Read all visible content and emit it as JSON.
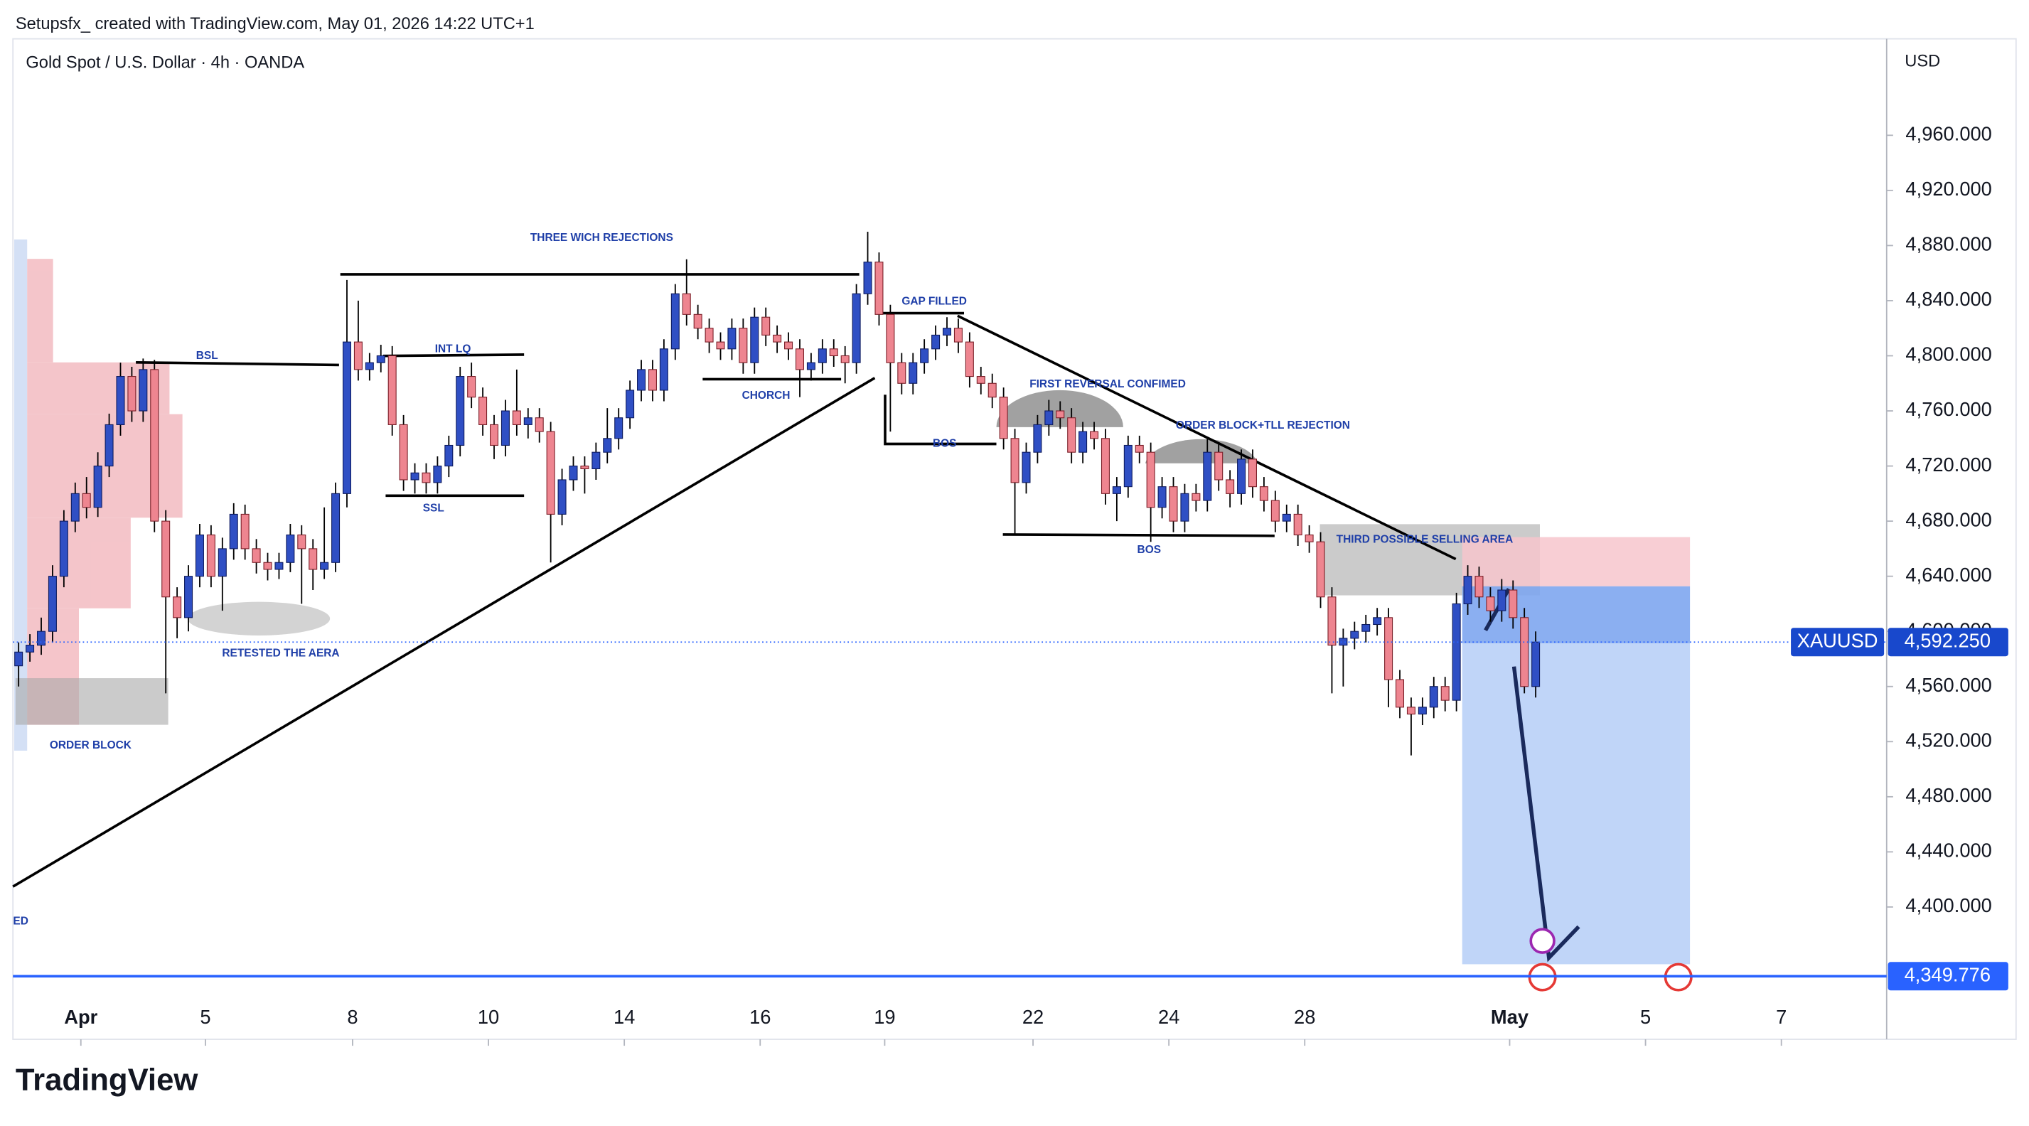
{
  "header": {
    "credit": "Setupsfx_ created with TradingView.com, May 01, 2026 14:22 UTC+1",
    "symbol": "Gold Spot / U.S. Dollar · 4h · OANDA",
    "currency": "USD",
    "logo": "TradingView"
  },
  "chart_data": {
    "type": "candlestick",
    "up_color": "#2f4fc4",
    "down_color": "#ee8590",
    "xlim": [
      -0.5,
      165
    ],
    "xticks": [
      {
        "value": 5.5,
        "label": "Apr"
      },
      {
        "value": 16.5,
        "label": "5"
      },
      {
        "value": 29.5,
        "label": "8"
      },
      {
        "value": 41.5,
        "label": "10"
      },
      {
        "value": 53.5,
        "label": "14"
      },
      {
        "value": 65.5,
        "label": "16"
      },
      {
        "value": 76.5,
        "label": "19"
      },
      {
        "value": 89.6,
        "label": "22"
      },
      {
        "value": 101.6,
        "label": "24"
      },
      {
        "value": 113.6,
        "label": "28"
      },
      {
        "value": 131.7,
        "label": "May"
      },
      {
        "value": 143.7,
        "label": "5"
      },
      {
        "value": 155.7,
        "label": "7"
      }
    ],
    "ylim": [
      4304,
      5030
    ],
    "yticks": [
      {
        "value": 4400,
        "label": "4,400.000"
      },
      {
        "value": 4440,
        "label": "4,440.000"
      },
      {
        "value": 4480,
        "label": "4,480.000"
      },
      {
        "value": 4520,
        "label": "4,520.000"
      },
      {
        "value": 4560,
        "label": "4,560.000"
      },
      {
        "value": 4600,
        "label": "4,600.000"
      },
      {
        "value": 4640,
        "label": "4,640.000"
      },
      {
        "value": 4680,
        "label": "4,680.000"
      },
      {
        "value": 4720,
        "label": "4,720.000"
      },
      {
        "value": 4760,
        "label": "4,760.000"
      },
      {
        "value": 4800,
        "label": "4,800.000"
      },
      {
        "value": 4840,
        "label": "4,840.000"
      },
      {
        "value": 4880,
        "label": "4,880.000"
      },
      {
        "value": 4920,
        "label": "4,920.000"
      },
      {
        "value": 4960,
        "label": "4,960.000"
      }
    ],
    "last_price": {
      "symbol": "XAUUSD",
      "value": 4592.25,
      "label": "4,592.250"
    },
    "target": {
      "value": 4349.776,
      "label": "4,349.776"
    },
    "annotations": [
      "THREE WICH REJECTIONS",
      "BSL",
      "INT LQ",
      "GAP FILLED",
      "CHORCH",
      "FIRST REVERSAL CONFIMED",
      "ORDER BLOCK+TLL REJECTION",
      "BOS",
      "SSL",
      "BOS",
      "THIRD POSSIBLE SELLING AREA",
      "RETESTED THE AERA",
      "ORDER BLOCK",
      "ED"
    ],
    "candles": [
      [
        4575,
        4592,
        4560,
        4585
      ],
      [
        4585,
        4598,
        4578,
        4590
      ],
      [
        4590,
        4610,
        4583,
        4600
      ],
      [
        4600,
        4648,
        4592,
        4640
      ],
      [
        4640,
        4688,
        4632,
        4680
      ],
      [
        4680,
        4708,
        4672,
        4700
      ],
      [
        4700,
        4712,
        4682,
        4690
      ],
      [
        4690,
        4730,
        4683,
        4720
      ],
      [
        4720,
        4758,
        4712,
        4750
      ],
      [
        4750,
        4795,
        4742,
        4785
      ],
      [
        4785,
        4792,
        4752,
        4760
      ],
      [
        4760,
        4798,
        4752,
        4790
      ],
      [
        4790,
        4797,
        4672,
        4680
      ],
      [
        4680,
        4688,
        4555,
        4625
      ],
      [
        4625,
        4632,
        4595,
        4610
      ],
      [
        4610,
        4648,
        4600,
        4640
      ],
      [
        4640,
        4678,
        4632,
        4670
      ],
      [
        4670,
        4677,
        4632,
        4640
      ],
      [
        4640,
        4668,
        4615,
        4660
      ],
      [
        4660,
        4693,
        4652,
        4685
      ],
      [
        4685,
        4692,
        4652,
        4660
      ],
      [
        4660,
        4667,
        4642,
        4650
      ],
      [
        4650,
        4657,
        4637,
        4645
      ],
      [
        4645,
        4657,
        4638,
        4650
      ],
      [
        4650,
        4678,
        4643,
        4670
      ],
      [
        4670,
        4677,
        4620,
        4660
      ],
      [
        4660,
        4667,
        4630,
        4645
      ],
      [
        4645,
        4690,
        4638,
        4650
      ],
      [
        4650,
        4708,
        4643,
        4700
      ],
      [
        4700,
        4855,
        4690,
        4810
      ],
      [
        4810,
        4840,
        4782,
        4790
      ],
      [
        4790,
        4802,
        4782,
        4795
      ],
      [
        4795,
        4808,
        4788,
        4800
      ],
      [
        4800,
        4807,
        4742,
        4750
      ],
      [
        4750,
        4757,
        4702,
        4710
      ],
      [
        4710,
        4722,
        4700,
        4715
      ],
      [
        4715,
        4722,
        4700,
        4708
      ],
      [
        4708,
        4727,
        4700,
        4720
      ],
      [
        4720,
        4742,
        4712,
        4735
      ],
      [
        4735,
        4792,
        4727,
        4785
      ],
      [
        4785,
        4795,
        4762,
        4770
      ],
      [
        4770,
        4777,
        4742,
        4750
      ],
      [
        4750,
        4757,
        4725,
        4735
      ],
      [
        4735,
        4768,
        4727,
        4760
      ],
      [
        4760,
        4790,
        4742,
        4750
      ],
      [
        4750,
        4762,
        4740,
        4755
      ],
      [
        4755,
        4762,
        4737,
        4745
      ],
      [
        4745,
        4752,
        4650,
        4685
      ],
      [
        4685,
        4718,
        4677,
        4710
      ],
      [
        4710,
        4727,
        4702,
        4720
      ],
      [
        4720,
        4727,
        4700,
        4718
      ],
      [
        4718,
        4737,
        4710,
        4730
      ],
      [
        4730,
        4762,
        4722,
        4740
      ],
      [
        4740,
        4762,
        4732,
        4755
      ],
      [
        4755,
        4782,
        4747,
        4775
      ],
      [
        4775,
        4797,
        4767,
        4790
      ],
      [
        4790,
        4797,
        4767,
        4775
      ],
      [
        4775,
        4812,
        4767,
        4805
      ],
      [
        4805,
        4852,
        4797,
        4845
      ],
      [
        4845,
        4870,
        4822,
        4830
      ],
      [
        4830,
        4837,
        4812,
        4820
      ],
      [
        4820,
        4827,
        4802,
        4810
      ],
      [
        4810,
        4817,
        4797,
        4805
      ],
      [
        4805,
        4827,
        4797,
        4820
      ],
      [
        4820,
        4827,
        4787,
        4795
      ],
      [
        4795,
        4835,
        4787,
        4828
      ],
      [
        4828,
        4835,
        4807,
        4815
      ],
      [
        4815,
        4822,
        4802,
        4810
      ],
      [
        4810,
        4817,
        4797,
        4805
      ],
      [
        4805,
        4812,
        4770,
        4790
      ],
      [
        4790,
        4802,
        4782,
        4795
      ],
      [
        4795,
        4812,
        4787,
        4805
      ],
      [
        4805,
        4812,
        4792,
        4800
      ],
      [
        4800,
        4807,
        4780,
        4795
      ],
      [
        4795,
        4852,
        4787,
        4845
      ],
      [
        4845,
        4890,
        4837,
        4868
      ],
      [
        4868,
        4875,
        4822,
        4830
      ],
      [
        4830,
        4837,
        4745,
        4795
      ],
      [
        4795,
        4802,
        4772,
        4780
      ],
      [
        4780,
        4802,
        4772,
        4795
      ],
      [
        4795,
        4812,
        4787,
        4805
      ],
      [
        4805,
        4822,
        4797,
        4815
      ],
      [
        4815,
        4828,
        4807,
        4820
      ],
      [
        4820,
        4827,
        4802,
        4810
      ],
      [
        4810,
        4817,
        4777,
        4785
      ],
      [
        4785,
        4792,
        4772,
        4780
      ],
      [
        4780,
        4787,
        4762,
        4770
      ],
      [
        4770,
        4777,
        4732,
        4740
      ],
      [
        4740,
        4747,
        4670,
        4708
      ],
      [
        4708,
        4737,
        4700,
        4730
      ],
      [
        4730,
        4757,
        4722,
        4750
      ],
      [
        4750,
        4768,
        4742,
        4760
      ],
      [
        4760,
        4767,
        4747,
        4755
      ],
      [
        4755,
        4762,
        4722,
        4730
      ],
      [
        4730,
        4752,
        4722,
        4745
      ],
      [
        4745,
        4752,
        4732,
        4740
      ],
      [
        4740,
        4747,
        4692,
        4700
      ],
      [
        4700,
        4712,
        4680,
        4705
      ],
      [
        4705,
        4742,
        4697,
        4735
      ],
      [
        4735,
        4742,
        4722,
        4730
      ],
      [
        4730,
        4737,
        4665,
        4690
      ],
      [
        4690,
        4712,
        4682,
        4705
      ],
      [
        4705,
        4712,
        4672,
        4680
      ],
      [
        4680,
        4707,
        4672,
        4700
      ],
      [
        4700,
        4707,
        4687,
        4695
      ],
      [
        4695,
        4740,
        4687,
        4730
      ],
      [
        4730,
        4737,
        4702,
        4710
      ],
      [
        4710,
        4717,
        4690,
        4700
      ],
      [
        4700,
        4732,
        4692,
        4725
      ],
      [
        4725,
        4732,
        4697,
        4705
      ],
      [
        4705,
        4712,
        4687,
        4695
      ],
      [
        4695,
        4702,
        4672,
        4680
      ],
      [
        4680,
        4692,
        4672,
        4685
      ],
      [
        4685,
        4692,
        4662,
        4670
      ],
      [
        4670,
        4677,
        4657,
        4665
      ],
      [
        4665,
        4672,
        4617,
        4625
      ],
      [
        4625,
        4632,
        4555,
        4590
      ],
      [
        4590,
        4602,
        4560,
        4595
      ],
      [
        4595,
        4607,
        4587,
        4600
      ],
      [
        4600,
        4612,
        4592,
        4605
      ],
      [
        4605,
        4617,
        4597,
        4610
      ],
      [
        4610,
        4617,
        4545,
        4565
      ],
      [
        4565,
        4572,
        4537,
        4545
      ],
      [
        4545,
        4552,
        4510,
        4540
      ],
      [
        4540,
        4552,
        4532,
        4545
      ],
      [
        4545,
        4567,
        4537,
        4560
      ],
      [
        4560,
        4567,
        4542,
        4550
      ],
      [
        4550,
        4628,
        4542,
        4620
      ],
      [
        4620,
        4648,
        4612,
        4640
      ],
      [
        4640,
        4647,
        4617,
        4625
      ],
      [
        4625,
        4632,
        4607,
        4615
      ],
      [
        4615,
        4638,
        4607,
        4630
      ],
      [
        4630,
        4637,
        4602,
        4610
      ],
      [
        4610,
        4617,
        4555,
        4560
      ],
      [
        4560,
        4600,
        4552,
        4592.25
      ]
    ]
  }
}
